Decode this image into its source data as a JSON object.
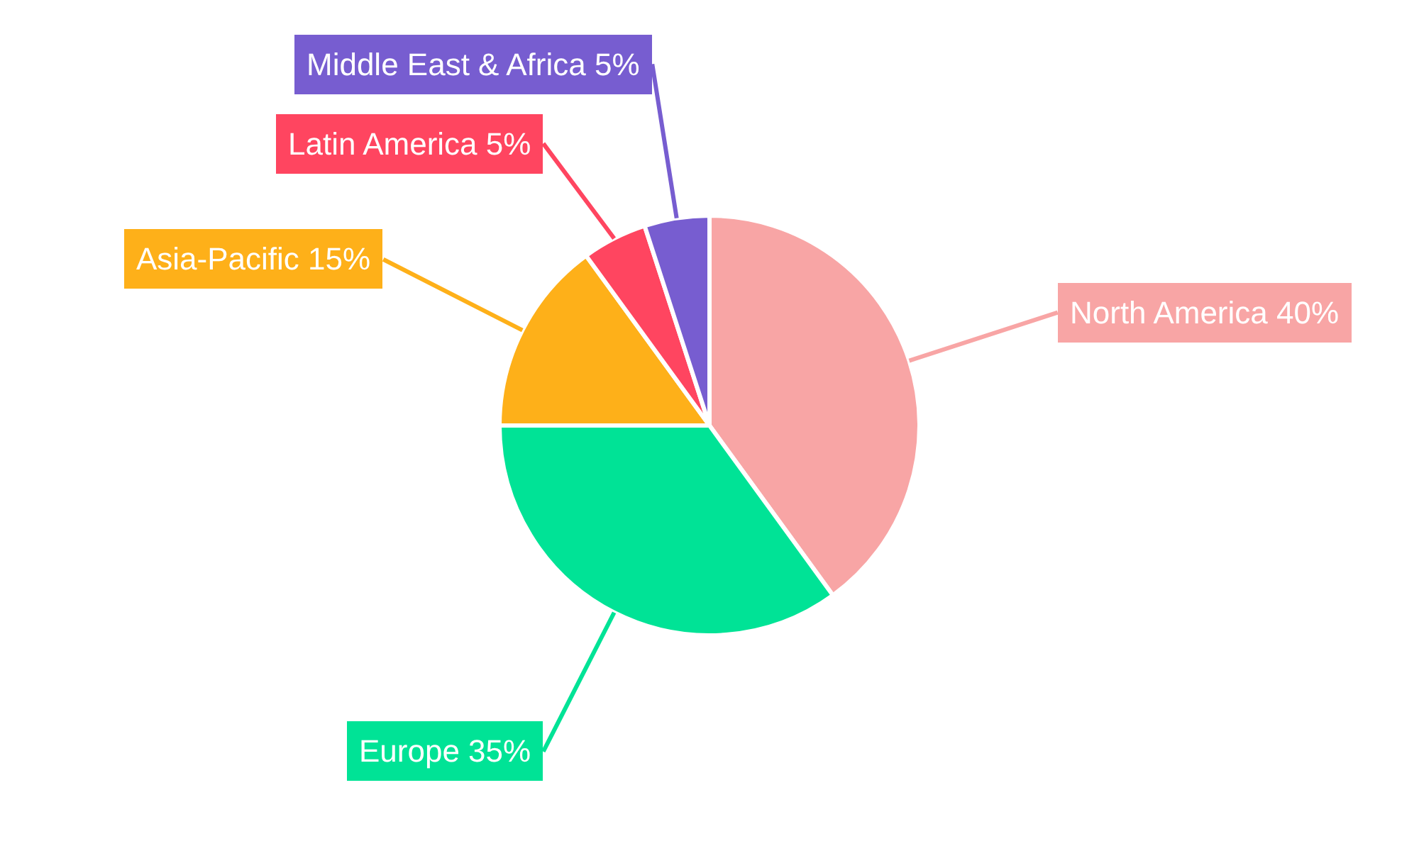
{
  "chart_data": {
    "type": "pie",
    "categories": [
      "North America",
      "Europe",
      "Asia-Pacific",
      "Latin America",
      "Middle East & Africa"
    ],
    "values": [
      40,
      35,
      15,
      5,
      5
    ],
    "value_labels": [
      "40%",
      "35%",
      "15%",
      "5%",
      "5%"
    ],
    "colors": [
      "#f8a5a5",
      "#00e396",
      "#feb019",
      "#ff4560",
      "#775dd0"
    ],
    "legend": false
  }
}
